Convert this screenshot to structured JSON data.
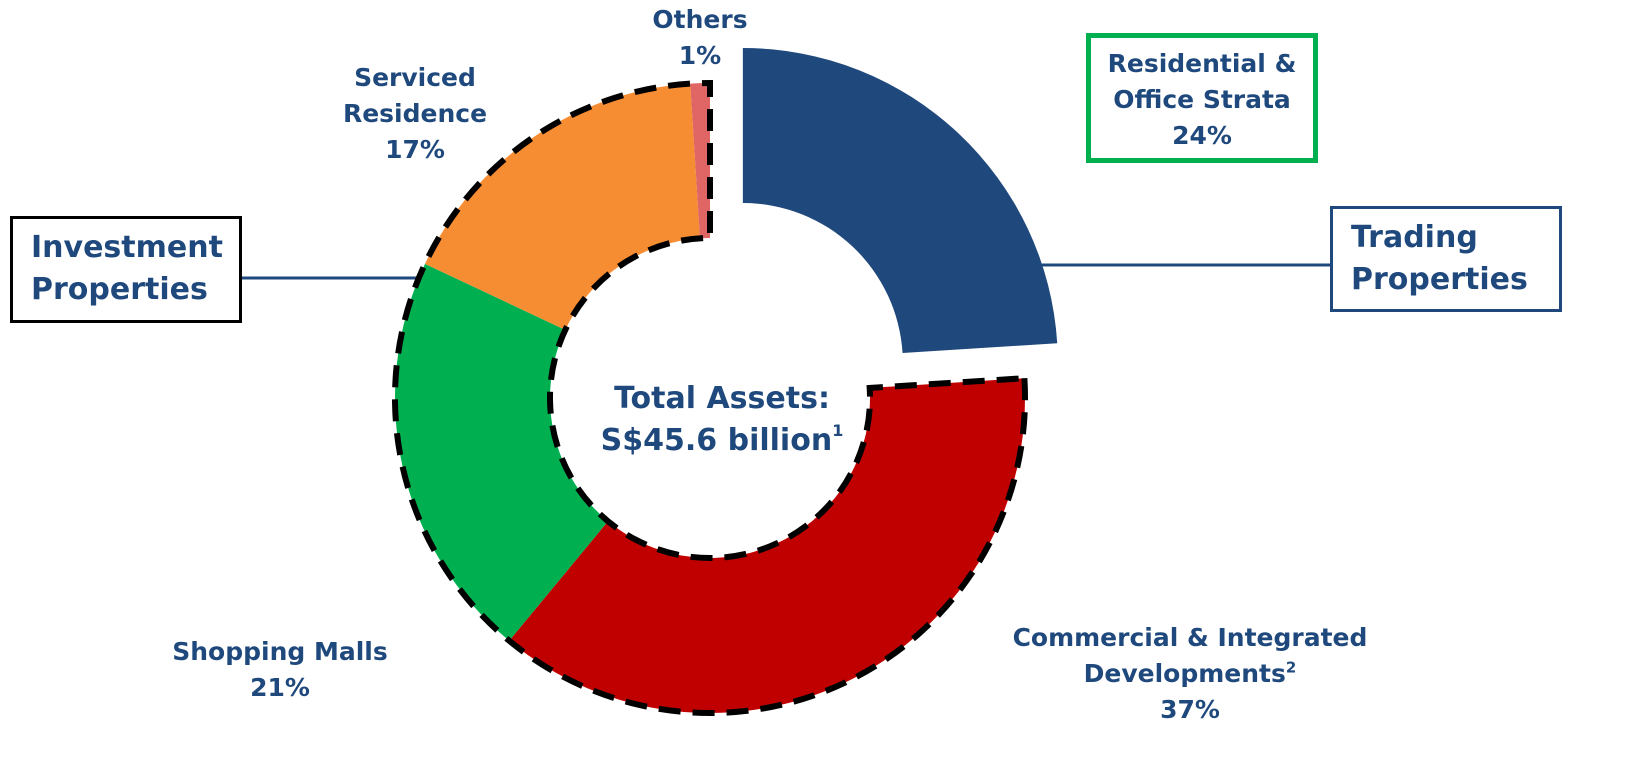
{
  "chart_data": {
    "type": "donut",
    "categories": [
      "Residential & Office Strata",
      "Commercial & Integrated Developments",
      "Shopping Malls",
      "Serviced Residence",
      "Others"
    ],
    "footnotes": [
      null,
      "2",
      null,
      null,
      null
    ],
    "values": [
      24,
      37,
      21,
      17,
      1
    ],
    "value_labels": [
      "24%",
      "37%",
      "21%",
      "17%",
      "1%"
    ],
    "colors": [
      "#1f497d",
      "#c00000",
      "#00b050",
      "#f68d32",
      "#e06666"
    ],
    "exploded": [
      true,
      false,
      false,
      false,
      false
    ],
    "center_text": {
      "line1": "Total Assets:",
      "line2": "S$45.6 billion",
      "footnote": "1"
    },
    "groups": [
      "Investment Properties",
      "Trading Properties"
    ]
  }
}
